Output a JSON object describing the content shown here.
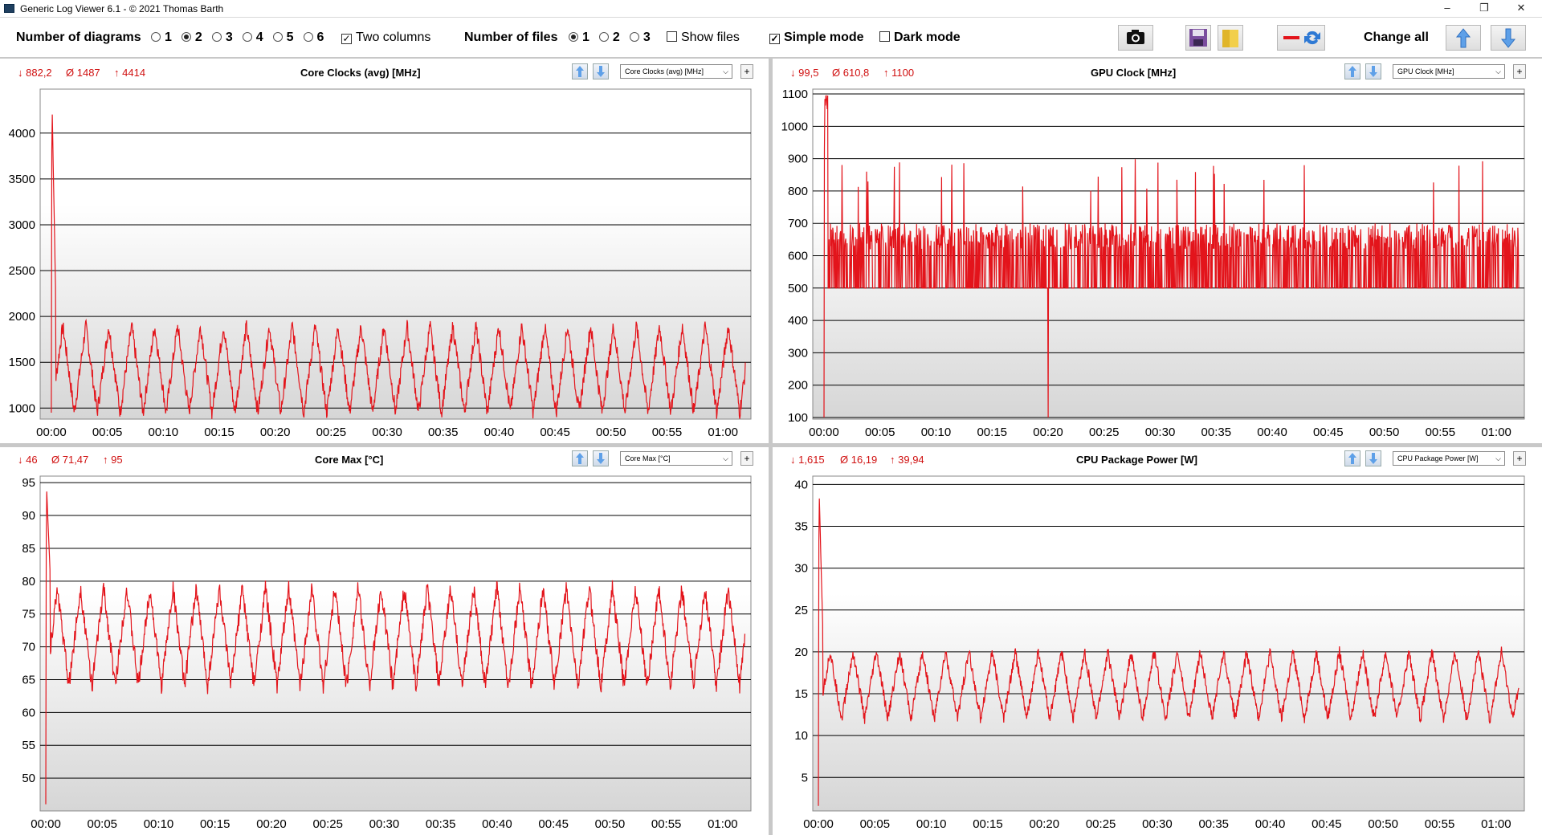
{
  "titlebar": {
    "title": "Generic Log Viewer 6.1 - © 2021 Thomas Barth",
    "minimize": "–",
    "restore": "❐",
    "close": "✕"
  },
  "toolbar": {
    "num_diagrams_label": "Number of diagrams",
    "diagram_options": [
      "1",
      "2",
      "3",
      "4",
      "5",
      "6"
    ],
    "diagram_selected": "2",
    "two_columns_label": "Two columns",
    "two_columns_checked": true,
    "num_files_label": "Number of files",
    "file_options": [
      "1",
      "2",
      "3"
    ],
    "file_selected": "1",
    "show_files_label": "Show files",
    "show_files_checked": false,
    "simple_mode_label": "Simple mode",
    "simple_mode_checked": true,
    "dark_mode_label": "Dark mode",
    "dark_mode_checked": false,
    "change_all_label": "Change all",
    "icons": [
      "camera-icon",
      "save-icon",
      "folder-icon",
      "swap-icon",
      "arrow-up-icon",
      "arrow-down-icon"
    ]
  },
  "chart_data": [
    {
      "type": "line",
      "title": "Core Clocks (avg) [MHz]",
      "selector_label": "Core Clocks (avg) [MHz]",
      "stats": {
        "min": "882,2",
        "avg": "1487",
        "max": "4414"
      },
      "yticks": [
        "1000",
        "1500",
        "2000",
        "2500",
        "3000",
        "3500",
        "4000"
      ],
      "xticks": [
        "00:00",
        "00:05",
        "00:10",
        "00:15",
        "00:20",
        "00:25",
        "00:30",
        "00:35",
        "00:40",
        "00:45",
        "00:50",
        "00:55",
        "01:00"
      ],
      "ylim": [
        880,
        4480
      ],
      "xlim_minutes": [
        -1,
        62.5
      ],
      "grid": true,
      "color": "#e3141b",
      "pattern": {
        "start": 4414,
        "low": 950,
        "high": 1900,
        "period_minutes": 2.05,
        "duration_minutes": 62
      }
    },
    {
      "type": "line",
      "title": "GPU Clock [MHz]",
      "selector_label": "GPU Clock [MHz]",
      "stats": {
        "min": "99,5",
        "avg": "610,8",
        "max": "1100"
      },
      "yticks": [
        "100",
        "200",
        "300",
        "400",
        "500",
        "600",
        "700",
        "800",
        "900",
        "1000",
        "1100"
      ],
      "xticks": [
        "00:00",
        "00:05",
        "00:10",
        "00:15",
        "00:20",
        "00:25",
        "00:30",
        "00:35",
        "00:40",
        "00:45",
        "00:50",
        "00:55",
        "01:00"
      ],
      "ylim": [
        95,
        1115
      ],
      "xlim_minutes": [
        -1,
        62.5
      ],
      "grid": true,
      "color": "#e3141b",
      "pattern": {
        "start": 1100,
        "low": 500,
        "high": 700,
        "spike_minute": 20,
        "spike_value": 100,
        "duration_minutes": 62
      }
    },
    {
      "type": "line",
      "title": "Core Max [°C]",
      "selector_label": "Core Max [°C]",
      "stats": {
        "min": "46",
        "avg": "71,47",
        "max": "95"
      },
      "yticks": [
        "50",
        "55",
        "60",
        "65",
        "70",
        "75",
        "80",
        "85",
        "90",
        "95"
      ],
      "xticks": [
        "00:00",
        "00:05",
        "00:10",
        "00:15",
        "00:20",
        "00:25",
        "00:30",
        "00:35",
        "00:40",
        "00:45",
        "00:50",
        "00:55",
        "01:00"
      ],
      "ylim": [
        45,
        96
      ],
      "xlim_minutes": [
        -0.5,
        62.5
      ],
      "grid": true,
      "color": "#e3141b",
      "pattern": {
        "start": 95,
        "low": 64,
        "high": 79,
        "period_minutes": 2.05,
        "duration_minutes": 62
      }
    },
    {
      "type": "line",
      "title": "CPU Package Power [W]",
      "selector_label": "CPU Package Power [W]",
      "stats": {
        "min": "1,615",
        "avg": "16,19",
        "max": "39,94"
      },
      "yticks": [
        "5",
        "10",
        "15",
        "20",
        "25",
        "30",
        "35",
        "40"
      ],
      "xticks": [
        "00:00",
        "00:05",
        "00:10",
        "00:15",
        "00:20",
        "00:25",
        "00:30",
        "00:35",
        "00:40",
        "00:45",
        "00:50",
        "00:55",
        "01:00"
      ],
      "ylim": [
        1,
        41
      ],
      "xlim_minutes": [
        -0.5,
        62.5
      ],
      "grid": true,
      "color": "#e3141b",
      "pattern": {
        "start": 40,
        "low": 12,
        "high": 20,
        "period_minutes": 2.05,
        "duration_minutes": 62
      }
    }
  ]
}
